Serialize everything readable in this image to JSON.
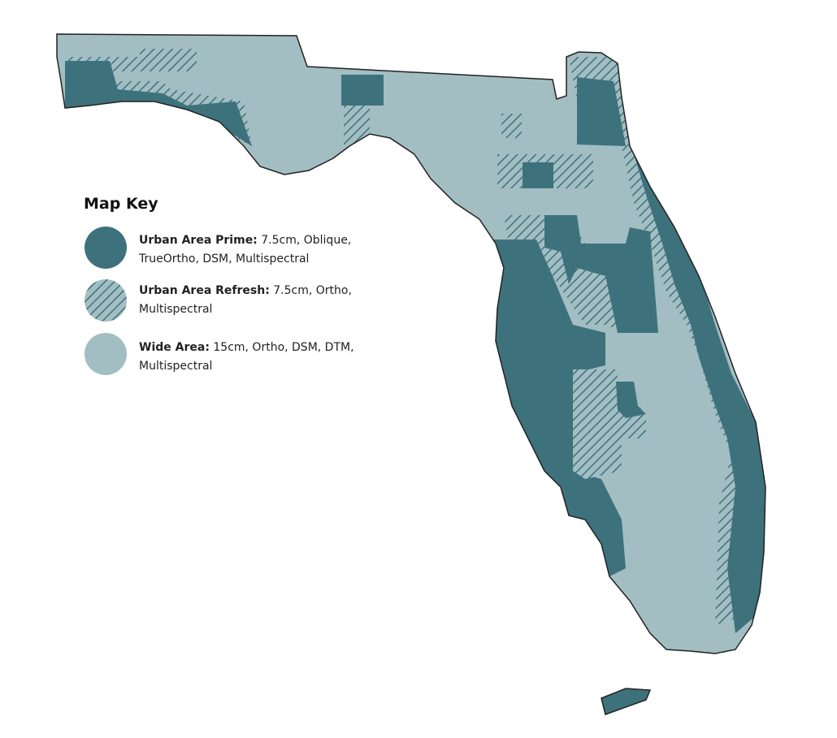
{
  "legend": {
    "title": "Map Key",
    "items": [
      {
        "label": "Urban Area Prime:",
        "description": "7.5cm, Oblique, TrueOrtho, DSM, Multispectral"
      },
      {
        "label": "Urban Area Refresh:",
        "description": "7.5cm, Ortho, Multispectral"
      },
      {
        "label": "Wide Area:",
        "description": "15cm, Ortho, DSM, DTM, Multispectral"
      }
    ]
  }
}
